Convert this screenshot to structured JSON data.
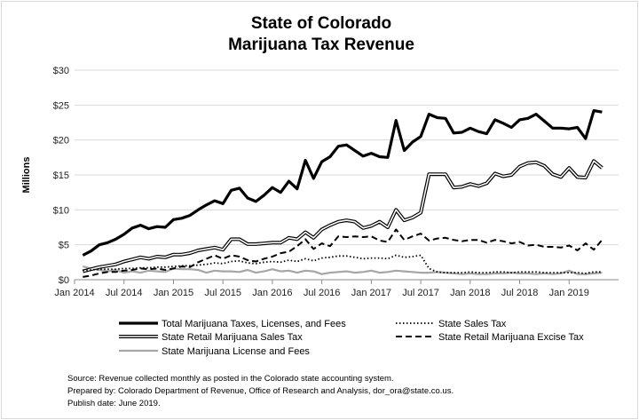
{
  "chart_data": {
    "type": "line",
    "title": [
      "State of Colorado",
      "Marijuana Tax Revenue"
    ],
    "ylabel": "Millions",
    "ylim": [
      0,
      30
    ],
    "yticks": [
      0,
      5,
      10,
      15,
      20,
      25,
      30
    ],
    "ytick_labels": [
      "$0",
      "$5",
      "$10",
      "$15",
      "$20",
      "$25",
      "$30"
    ],
    "xlim": [
      "2014-01",
      "2019-07"
    ],
    "xticks": [
      "2014-01",
      "2014-07",
      "2015-01",
      "2015-07",
      "2016-01",
      "2016-07",
      "2017-01",
      "2017-07",
      "2018-01",
      "2018-07",
      "2019-01"
    ],
    "xtick_labels": [
      "Jan 2014",
      "Jul 2014",
      "Jan 2015",
      "Jul 2015",
      "Jan 2016",
      "Jul 2016",
      "Jan 2017",
      "Jul 2017",
      "Jan 2018",
      "Jul 2018",
      "Jan 2019"
    ],
    "grid": "horizontal",
    "legend": "bottom",
    "x": [
      "2014-02",
      "2014-03",
      "2014-04",
      "2014-05",
      "2014-06",
      "2014-07",
      "2014-08",
      "2014-09",
      "2014-10",
      "2014-11",
      "2014-12",
      "2015-01",
      "2015-02",
      "2015-03",
      "2015-04",
      "2015-05",
      "2015-06",
      "2015-07",
      "2015-08",
      "2015-09",
      "2015-10",
      "2015-11",
      "2015-12",
      "2016-01",
      "2016-02",
      "2016-03",
      "2016-04",
      "2016-05",
      "2016-06",
      "2016-07",
      "2016-08",
      "2016-09",
      "2016-10",
      "2016-11",
      "2016-12",
      "2017-01",
      "2017-02",
      "2017-03",
      "2017-04",
      "2017-05",
      "2017-06",
      "2017-07",
      "2017-08",
      "2017-09",
      "2017-10",
      "2017-11",
      "2017-12",
      "2018-01",
      "2018-02",
      "2018-03",
      "2018-04",
      "2018-05",
      "2018-06",
      "2018-07",
      "2018-08",
      "2018-09",
      "2018-10",
      "2018-11",
      "2018-12",
      "2019-01",
      "2019-02",
      "2019-03",
      "2019-04",
      "2019-05"
    ],
    "series": [
      {
        "name": "Total Marijuana Taxes, Licenses, and Fees",
        "style": "thick-solid",
        "color": "#000000",
        "values": [
          3.5,
          4.1,
          5.0,
          5.3,
          5.8,
          6.5,
          7.4,
          7.8,
          7.3,
          7.6,
          7.5,
          8.6,
          8.8,
          9.2,
          10.0,
          10.7,
          11.3,
          10.9,
          12.8,
          13.1,
          11.7,
          11.2,
          12.1,
          13.2,
          12.5,
          14.1,
          13.0,
          17.1,
          14.5,
          16.9,
          17.6,
          19.1,
          19.3,
          18.5,
          17.7,
          18.1,
          17.6,
          17.5,
          22.8,
          18.5,
          19.7,
          20.5,
          23.7,
          23.2,
          23.1,
          21.0,
          21.1,
          21.7,
          21.2,
          20.9,
          22.9,
          22.4,
          21.8,
          22.9,
          23.1,
          23.7,
          22.7,
          21.7,
          21.7,
          21.6,
          21.8,
          20.2,
          24.2,
          24.0
        ]
      },
      {
        "name": "State Sales Tax",
        "style": "dotted",
        "color": "#000000",
        "values": [
          1.3,
          1.4,
          1.5,
          1.5,
          1.5,
          1.6,
          1.6,
          1.7,
          1.7,
          1.8,
          1.8,
          1.9,
          2.0,
          2.0,
          2.1,
          2.2,
          2.4,
          2.3,
          2.6,
          2.7,
          2.4,
          2.3,
          2.5,
          2.6,
          2.5,
          2.8,
          2.6,
          3.0,
          2.7,
          3.1,
          3.2,
          3.4,
          3.4,
          3.2,
          3.0,
          3.1,
          3.1,
          3.0,
          3.5,
          3.2,
          3.3,
          3.5,
          1.6,
          1.1,
          1.0,
          1.0,
          1.0,
          1.1,
          1.0,
          1.0,
          1.1,
          1.1,
          1.0,
          1.1,
          1.1,
          1.1,
          1.0,
          1.0,
          1.0,
          1.0,
          1.0,
          0.9,
          1.1,
          1.1
        ]
      },
      {
        "name": "State Retail Marijuana Sales Tax",
        "style": "double-line",
        "color": "#000000",
        "values": [
          1.2,
          1.5,
          1.8,
          2.0,
          2.2,
          2.6,
          2.9,
          3.2,
          3.0,
          3.3,
          3.2,
          3.6,
          3.6,
          3.8,
          4.2,
          4.4,
          4.6,
          4.3,
          5.8,
          5.8,
          5.1,
          5.1,
          5.2,
          5.3,
          5.3,
          6.0,
          5.8,
          6.8,
          6.0,
          7.2,
          7.8,
          8.3,
          8.5,
          8.3,
          7.4,
          7.7,
          8.3,
          7.5,
          10.0,
          8.5,
          8.9,
          9.6,
          15.1,
          15.1,
          15.1,
          13.2,
          13.3,
          13.7,
          13.4,
          13.8,
          15.2,
          14.8,
          15.0,
          16.2,
          16.7,
          16.8,
          16.3,
          15.1,
          14.7,
          16.0,
          14.7,
          14.6,
          17.0,
          16.0
        ]
      },
      {
        "name": "State Retail Marijuana Excise Tax",
        "style": "dashed",
        "color": "#000000",
        "values": [
          0.4,
          0.6,
          0.9,
          1.1,
          1.1,
          1.3,
          1.4,
          1.6,
          1.5,
          1.6,
          1.4,
          1.6,
          1.9,
          1.8,
          2.5,
          3.0,
          3.5,
          3.0,
          3.5,
          3.3,
          2.8,
          2.6,
          3.0,
          3.3,
          3.8,
          4.0,
          4.8,
          5.8,
          4.4,
          5.2,
          4.8,
          6.2,
          6.1,
          6.2,
          6.1,
          6.2,
          5.6,
          5.4,
          7.2,
          5.7,
          6.2,
          6.6,
          5.6,
          5.9,
          6.0,
          5.7,
          5.5,
          5.7,
          5.7,
          5.3,
          5.7,
          5.5,
          5.2,
          5.4,
          4.9,
          5.0,
          4.7,
          4.7,
          4.6,
          4.9,
          4.2,
          5.2,
          4.3,
          5.7
        ]
      },
      {
        "name": "State Marijuana License and Fees",
        "style": "solid-gray",
        "color": "#a6a6a6",
        "values": [
          1.9,
          1.6,
          1.4,
          1.2,
          1.4,
          1.0,
          1.2,
          1.0,
          1.3,
          1.2,
          1.1,
          1.6,
          1.5,
          1.5,
          1.4,
          1.0,
          1.3,
          1.2,
          1.2,
          1.1,
          1.4,
          1.0,
          1.2,
          1.5,
          1.2,
          1.3,
          1.0,
          1.3,
          1.2,
          0.8,
          1.0,
          1.1,
          1.2,
          1.0,
          1.1,
          1.3,
          1.0,
          1.1,
          1.3,
          1.2,
          1.1,
          1.0,
          1.0,
          1.1,
          1.0,
          0.9,
          0.8,
          0.9,
          0.8,
          0.8,
          0.9,
          0.9,
          1.0,
          0.9,
          0.9,
          0.8,
          0.9,
          0.8,
          0.9,
          1.3,
          0.8,
          0.8,
          0.9,
          1.0
        ]
      }
    ],
    "source_notes": [
      "Source: Revenue collected monthly as posted in the Colorado state accounting system.",
      "Prepared by: Colorado Department of Revenue, Office of Research and Analysis, dor_ora@state.co.us.",
      "Publish date: June 2019."
    ]
  }
}
